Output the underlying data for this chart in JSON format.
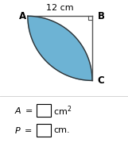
{
  "side": 12,
  "shade_color": "#6db3d4",
  "shade_alpha": 1.0,
  "bg_color": "#ffffff",
  "line_color": "#555555",
  "label_A": "A",
  "label_B": "B",
  "label_C": "C",
  "dim_label": "12 cm",
  "label_fontsize": 8.5,
  "dim_fontsize": 8
}
